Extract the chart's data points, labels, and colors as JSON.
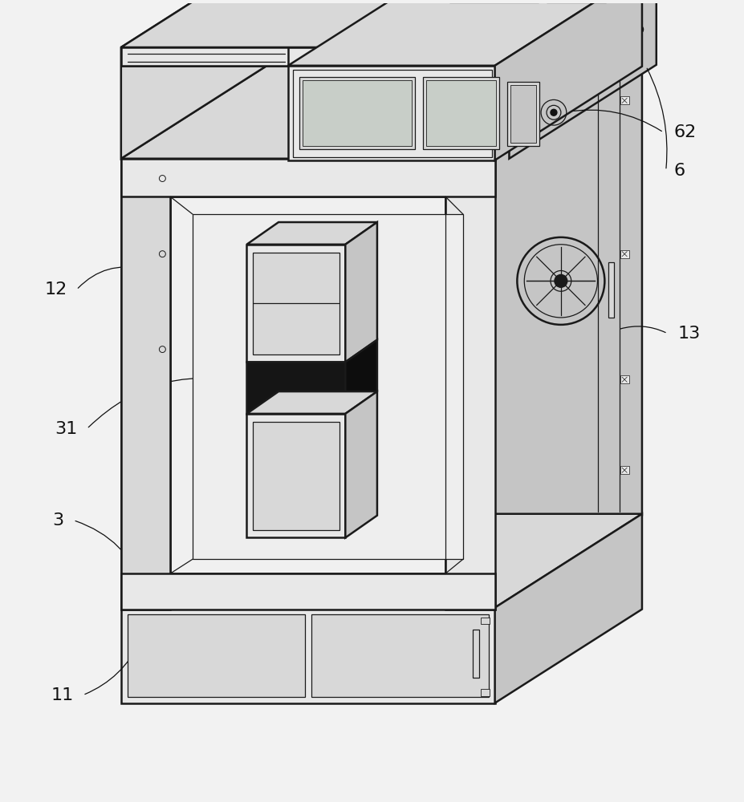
{
  "bg_color": "#f2f2f2",
  "line_color": "#1a1a1a",
  "dark_color": "#111111",
  "label_color": "#111111",
  "face_light": "#e8e8e8",
  "face_mid": "#d8d8d8",
  "face_dark": "#c5c5c5",
  "face_darker": "#b5b5b5",
  "face_white": "#f5f5f5",
  "face_black": "#151515"
}
